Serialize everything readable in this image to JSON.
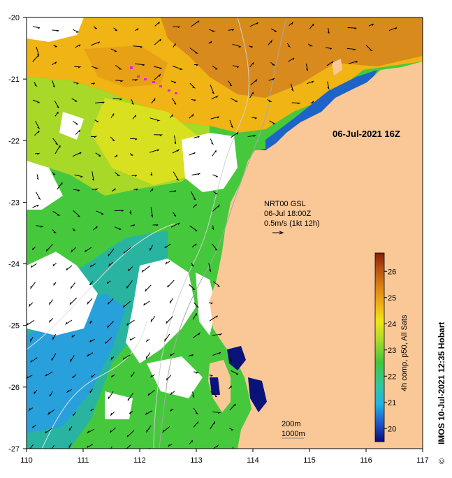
{
  "map": {
    "date_label": "06-Jul-2021 16Z",
    "current_info": {
      "line1": "NRT00 GSL",
      "line2": "06-Jul 18:00Z",
      "line3": "0.5m/s (1kt 12h)"
    },
    "contours": {
      "line1": "200m",
      "line2": "1000m"
    },
    "x_ticks": [
      "110",
      "111",
      "112",
      "113",
      "114",
      "115",
      "116",
      "117"
    ],
    "y_ticks": [
      "-20",
      "-21",
      "-22",
      "-23",
      "-24",
      "-25",
      "-26",
      "-27"
    ],
    "colorbar": {
      "title": "4h comp, p50, All Sats",
      "ticks": [
        "20",
        "21",
        "22",
        "23",
        "24",
        "25",
        "26"
      ],
      "min": 19.5,
      "max": 26.7,
      "colors": [
        "#0a0a78",
        "#1e50c8",
        "#1eb4e6",
        "#32c8a0",
        "#3cc83c",
        "#b4dc28",
        "#f0e614",
        "#f0b414",
        "#dc8214",
        "#b45014",
        "#8c1e0a"
      ]
    },
    "credit": "IMOS 10-Jul-2021 12:35 Hobart",
    "copyright_symbol": "©",
    "land_color": "#fac896",
    "nodata_color": "#ffffff"
  }
}
